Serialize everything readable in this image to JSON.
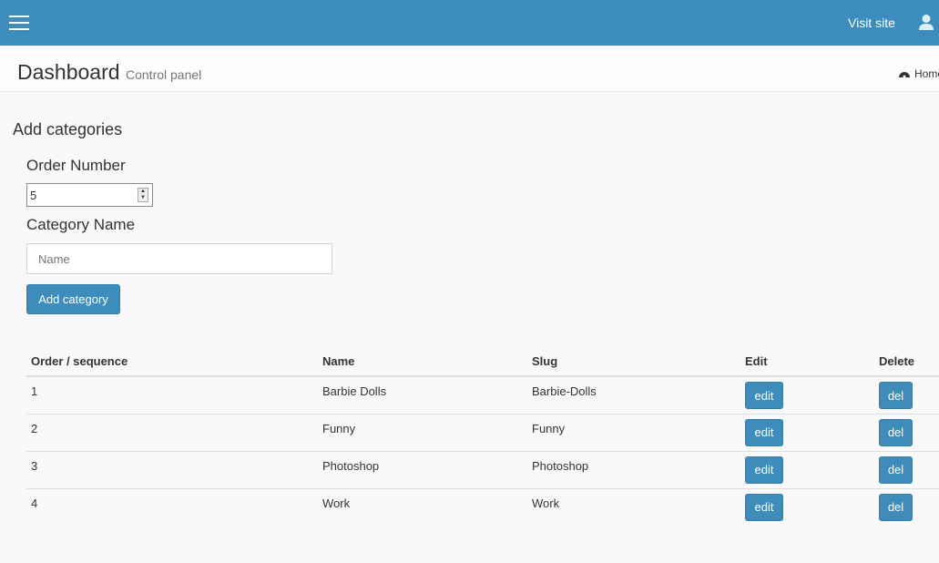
{
  "topbar": {
    "menu_icon": "hamburger-icon",
    "visit_site": "Visit site",
    "user_icon": "user-icon"
  },
  "header": {
    "title": "Dashboard",
    "subtitle": "Control panel",
    "breadcrumb_icon": "dashboard-icon",
    "breadcrumb": "Home"
  },
  "form": {
    "heading": "Add categories",
    "order_label": "Order Number",
    "order_value": "5",
    "name_label": "Category Name",
    "name_placeholder": "Name",
    "submit": "Add category"
  },
  "table": {
    "headers": [
      "Order / sequence",
      "Name",
      "Slug",
      "Edit",
      "Delete"
    ],
    "rows": [
      {
        "order": "1",
        "name": "Barbie Dolls",
        "slug": "Barbie-Dolls",
        "edit": "edit",
        "del": "del"
      },
      {
        "order": "2",
        "name": "Funny",
        "slug": "Funny",
        "edit": "edit",
        "del": "del"
      },
      {
        "order": "3",
        "name": "Photoshop",
        "slug": "Photoshop",
        "edit": "edit",
        "del": "del"
      },
      {
        "order": "4",
        "name": "Work",
        "slug": "Work",
        "edit": "edit",
        "del": "del"
      }
    ]
  },
  "colors": {
    "primary": "#3c8dbc"
  }
}
